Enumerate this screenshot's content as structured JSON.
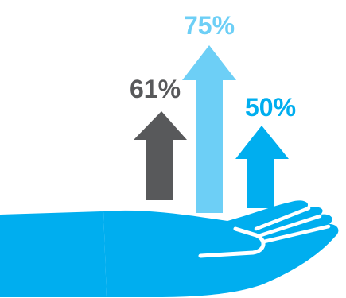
{
  "stats": [
    {
      "id": "dark",
      "label": "61%",
      "value": 61,
      "color": "#58595b"
    },
    {
      "id": "light",
      "label": "75%",
      "value": 75,
      "color": "#6dcff6"
    },
    {
      "id": "blue",
      "label": "50%",
      "value": 50,
      "color": "#00aeef"
    }
  ],
  "hand": {
    "color": "#00aeef",
    "accent": "#ffffff"
  }
}
